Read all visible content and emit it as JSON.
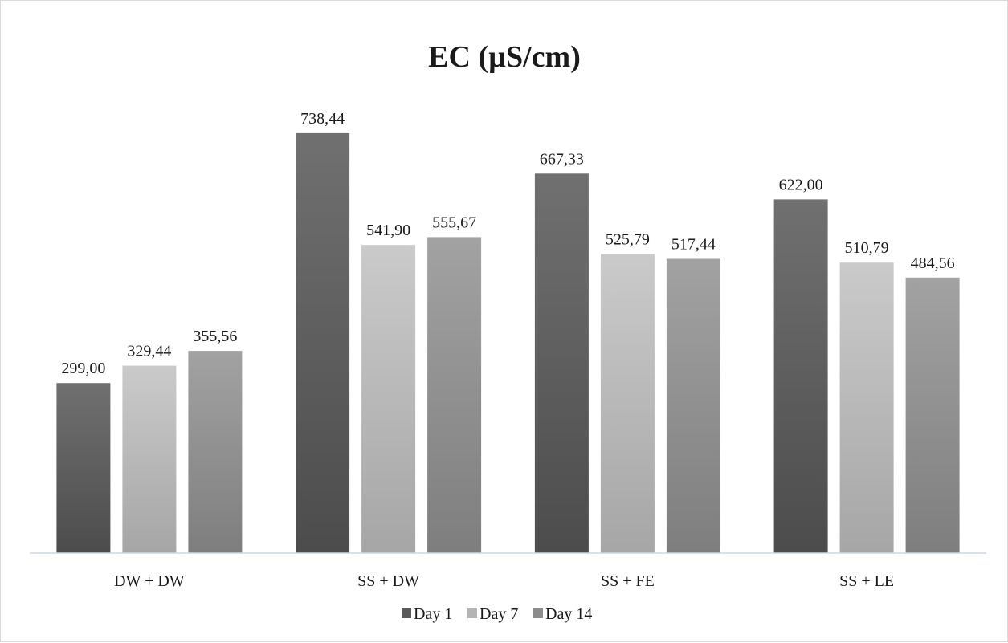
{
  "chart_data": {
    "type": "bar",
    "title": "EC (µS/cm)",
    "xlabel": "",
    "ylabel": "",
    "categories": [
      "DW + DW",
      "SS + DW",
      "SS + FE",
      "SS + LE"
    ],
    "series": [
      {
        "name": "Day 1",
        "values": [
          299.0,
          738.44,
          667.33,
          622.0
        ],
        "labels": [
          "299,00",
          "738,44",
          "667,33",
          "622,00"
        ],
        "color": "#5a5a5a"
      },
      {
        "name": "Day 7",
        "values": [
          329.44,
          541.9,
          525.79,
          510.79
        ],
        "labels": [
          "329,44",
          "541,90",
          "525,79",
          "510,79"
        ],
        "color": "#b4b4b4"
      },
      {
        "name": "Day 14",
        "values": [
          355.56,
          555.67,
          517.44,
          484.56
        ],
        "labels": [
          "355,56",
          "555,67",
          "517,44",
          "484,56"
        ],
        "color": "#8c8c8c"
      }
    ],
    "ylim": [
      0,
      860
    ],
    "grid": false,
    "legend_position": "bottom",
    "data_labels": true
  }
}
